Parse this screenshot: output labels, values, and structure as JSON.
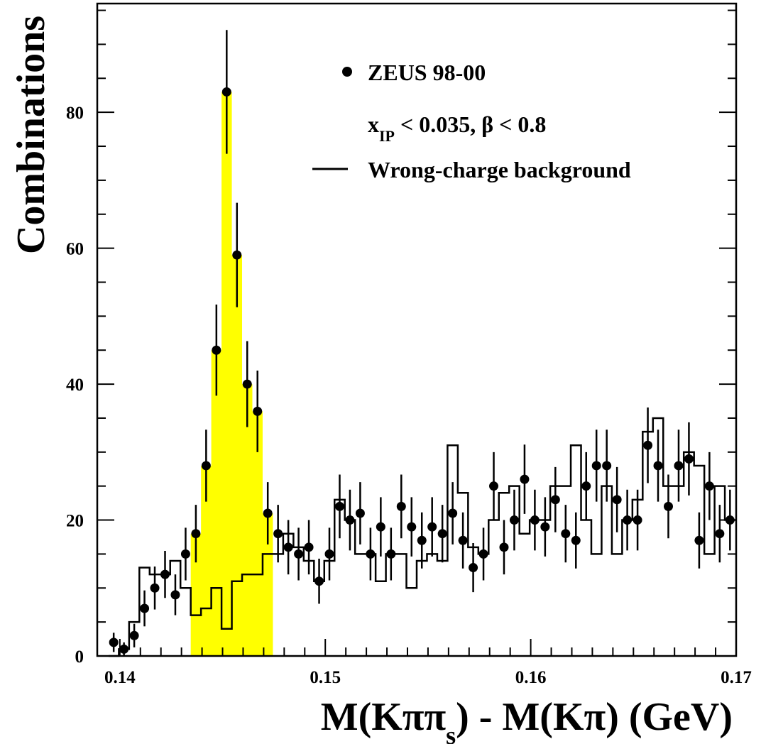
{
  "chart_data": {
    "type": "scatter",
    "xlim": [
      0.1389,
      0.17
    ],
    "ylim": [
      0,
      96
    ],
    "x_ticks": [
      0.14,
      0.15,
      0.16,
      0.17
    ],
    "x_tick_labels": [
      "0.14",
      "0.15",
      "0.16",
      "0.17"
    ],
    "y_ticks": [
      0,
      20,
      40,
      60,
      80
    ],
    "y_tick_labels": [
      "0",
      "20",
      "40",
      "60",
      "80"
    ],
    "xlabel": "M(Kππs) - M(Kπ)  (GeV)",
    "ylabel": "Combinations",
    "legend": {
      "placement": "top-right",
      "data_label": "ZEUS 98-00",
      "cuts_label": "x_IP < 0.035, β < 0.8",
      "background_label": "Wrong-charge background"
    },
    "data_points": {
      "name": "ZEUS 98-00",
      "x": [
        0.1397,
        0.1402,
        0.1407,
        0.1412,
        0.1417,
        0.1422,
        0.1427,
        0.1432,
        0.1437,
        0.1442,
        0.1447,
        0.1452,
        0.1457,
        0.1462,
        0.1467,
        0.1472,
        0.1477,
        0.1482,
        0.1487,
        0.1492,
        0.1497,
        0.1502,
        0.1507,
        0.1512,
        0.1517,
        0.1522,
        0.1527,
        0.1532,
        0.1537,
        0.1542,
        0.1547,
        0.1552,
        0.1557,
        0.1562,
        0.1567,
        0.1572,
        0.1577,
        0.1582,
        0.1587,
        0.1592,
        0.1597,
        0.1602,
        0.1607,
        0.1612,
        0.1617,
        0.1622,
        0.1627,
        0.1632,
        0.1637,
        0.1642,
        0.1647,
        0.1652,
        0.1657,
        0.1662,
        0.1667,
        0.1672,
        0.1677,
        0.1682,
        0.1687,
        0.1692,
        0.1697
      ],
      "y": [
        2,
        1,
        3,
        7,
        10,
        12,
        9,
        15,
        18,
        28,
        45,
        83,
        59,
        40,
        36,
        21,
        18,
        16,
        15,
        16,
        11,
        15,
        22,
        20,
        21,
        15,
        19,
        15,
        22,
        19,
        17,
        19,
        18,
        21,
        17,
        13,
        15,
        25,
        16,
        20,
        26,
        20,
        19,
        23,
        18,
        17,
        25,
        28,
        28,
        23,
        20,
        20,
        31,
        28,
        22,
        28,
        29,
        17,
        25,
        18,
        20
      ]
    },
    "background": {
      "name": "Wrong-charge background",
      "edges": [
        0.13945,
        0.13995,
        0.14045,
        0.14095,
        0.14145,
        0.14195,
        0.14245,
        0.14295,
        0.14345,
        0.14395,
        0.14445,
        0.14495,
        0.14545,
        0.14595,
        0.14645,
        0.14695,
        0.14745,
        0.14795,
        0.14845,
        0.14895,
        0.14945,
        0.14995,
        0.15045,
        0.15095,
        0.15145,
        0.15195,
        0.15245,
        0.15295,
        0.15345,
        0.15395,
        0.15445,
        0.15495,
        0.15545,
        0.15595,
        0.15645,
        0.15695,
        0.15745,
        0.15795,
        0.15845,
        0.15895,
        0.15945,
        0.15995,
        0.16045,
        0.16095,
        0.16145,
        0.16195,
        0.16245,
        0.16295,
        0.16345,
        0.16395,
        0.16445,
        0.16495,
        0.16545,
        0.16595,
        0.16645,
        0.16695,
        0.16745,
        0.16795,
        0.16845,
        0.16895,
        0.16945,
        0.16995
      ],
      "values": [
        0,
        1,
        5,
        13,
        12,
        12,
        14,
        10,
        6,
        7,
        10,
        4,
        11,
        12,
        12,
        15,
        15,
        18,
        16,
        14,
        11,
        14,
        23,
        20,
        15,
        15,
        11,
        15,
        15,
        10,
        14,
        15,
        14,
        31,
        24,
        16,
        15,
        20,
        24,
        25,
        18,
        20,
        20,
        25,
        25,
        31,
        20,
        15,
        25,
        15,
        20,
        23,
        33,
        35,
        25,
        25,
        30,
        28,
        15,
        25,
        20
      ]
    },
    "signal_band": {
      "color": "#ffff00",
      "edges": [
        0.14345,
        0.14395,
        0.14445,
        0.14495,
        0.14545,
        0.14595,
        0.14645,
        0.14695,
        0.14745
      ],
      "values": [
        18,
        28,
        45,
        83,
        59,
        40,
        36,
        21
      ]
    }
  }
}
